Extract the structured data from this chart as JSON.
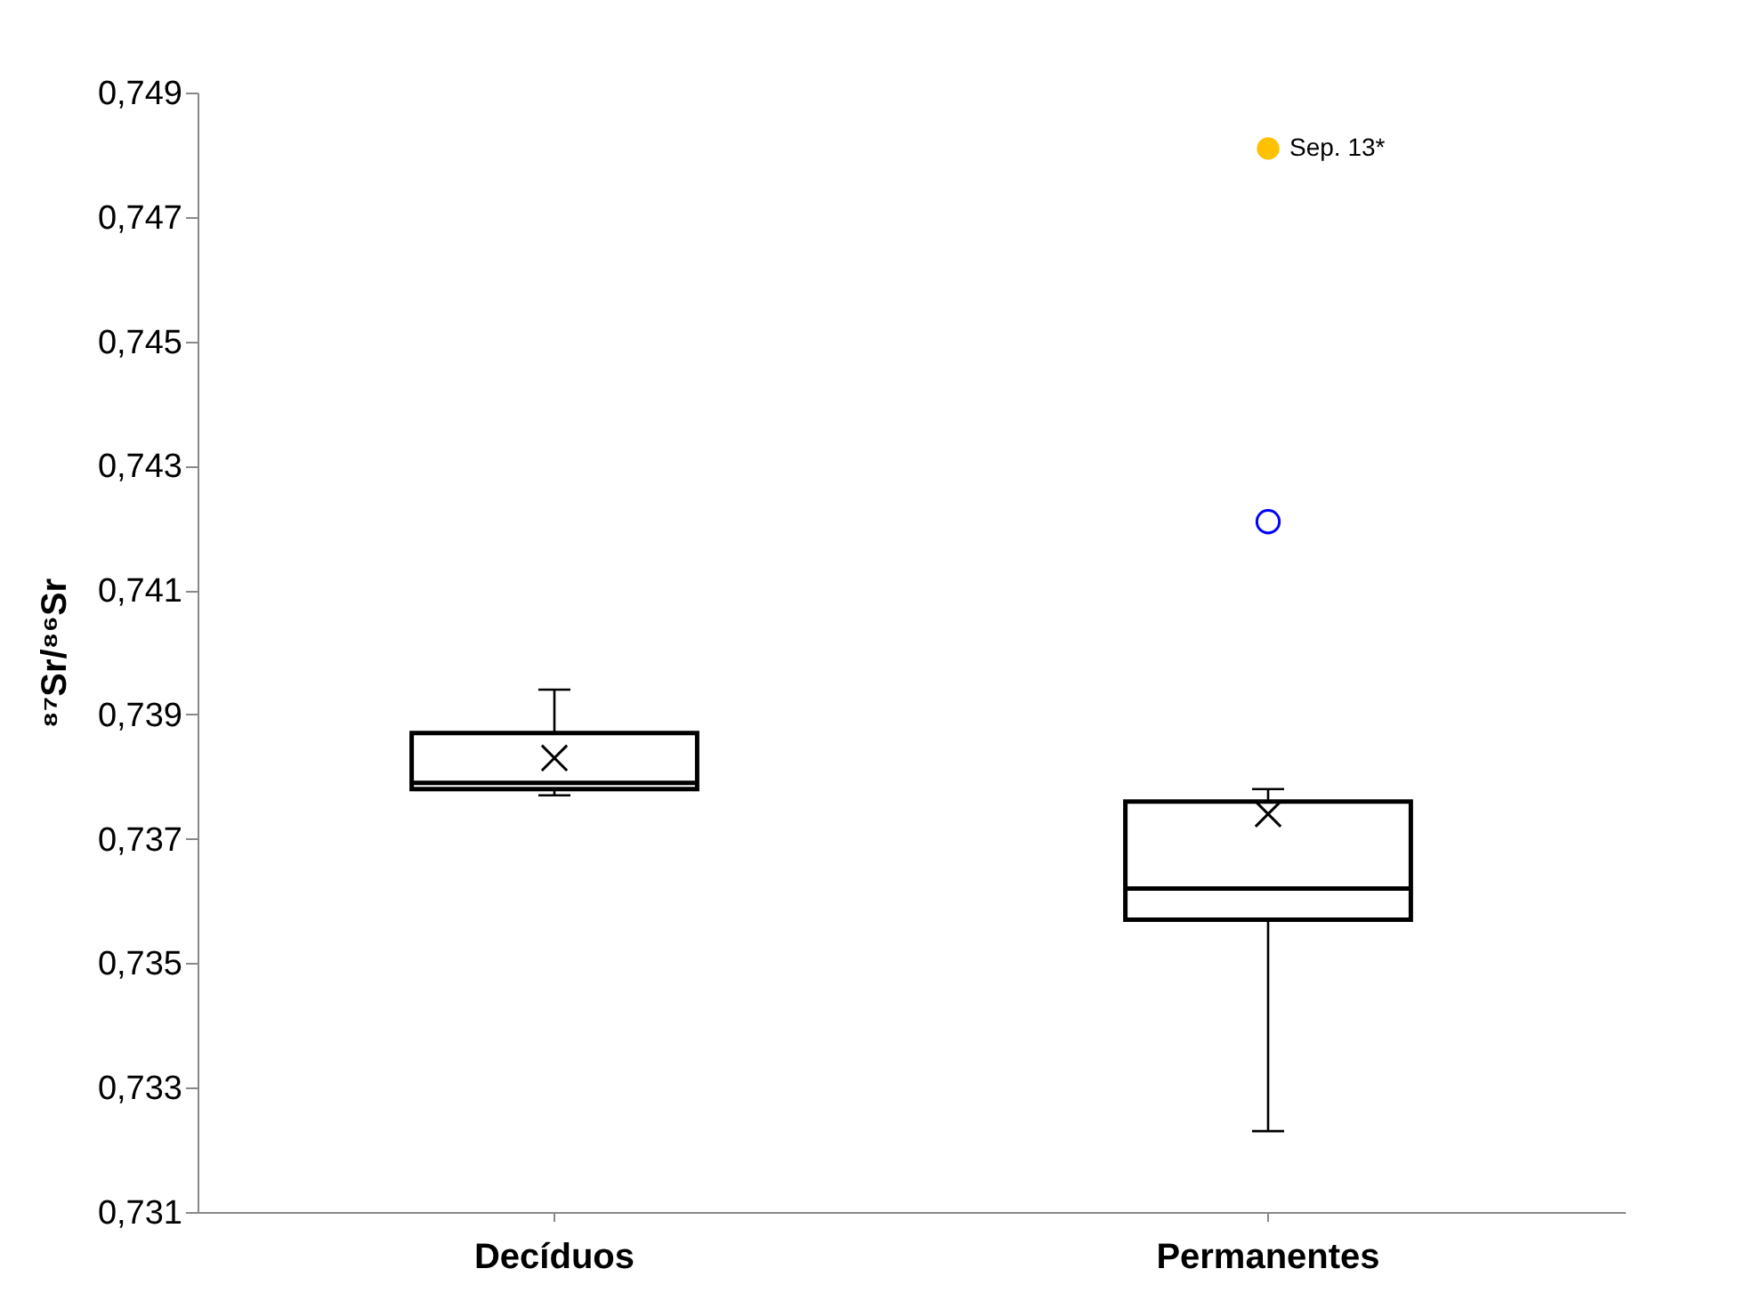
{
  "chart_data": {
    "type": "box",
    "ylabel": "⁸⁷Sr/⁸⁶Sr",
    "categories": [
      "Decíduos",
      "Permanentes"
    ],
    "ylim": [
      0.731,
      0.749
    ],
    "yticks": [
      {
        "value": 0.731,
        "label": "0,731"
      },
      {
        "value": 0.733,
        "label": "0,733"
      },
      {
        "value": 0.735,
        "label": "0,735"
      },
      {
        "value": 0.737,
        "label": "0,737"
      },
      {
        "value": 0.739,
        "label": "0,739"
      },
      {
        "value": 0.741,
        "label": "0,741"
      },
      {
        "value": 0.743,
        "label": "0,743"
      },
      {
        "value": 0.745,
        "label": "0,745"
      },
      {
        "value": 0.747,
        "label": "0,747"
      },
      {
        "value": 0.749,
        "label": "0,749"
      }
    ],
    "grid": false,
    "series": [
      {
        "type": "box",
        "color": "#000000",
        "boxes": [
          {
            "low": 0.7377,
            "q1": 0.7378,
            "median": 0.7379,
            "q3": 0.7387,
            "high": 0.7394,
            "mean": 0.7383
          },
          {
            "low": 0.7323,
            "q1": 0.7357,
            "median": 0.7362,
            "q3": 0.7376,
            "high": 0.7378,
            "mean": 0.7374,
            "outliers": [
              0.7421
            ]
          }
        ]
      },
      {
        "type": "scatter",
        "name": "Sep. 13*",
        "color": "#ffc000",
        "marker": "circle",
        "x": [
          "Permanentes"
        ],
        "values": [
          0.7481
        ]
      }
    ]
  }
}
